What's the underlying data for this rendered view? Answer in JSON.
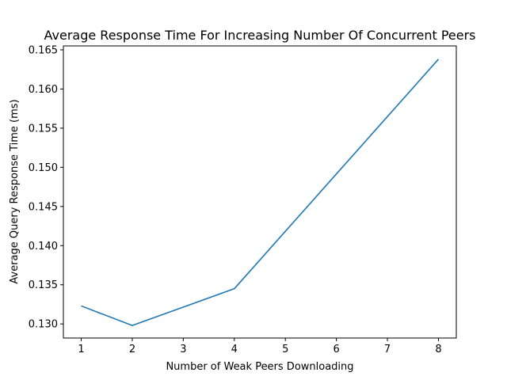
{
  "chart_data": {
    "type": "line",
    "title": "Average Response Time For Increasing Number Of Concurrent Peers",
    "xlabel": "Number of Weak Peers Downloading",
    "ylabel": "Average Query Response Time (ms)",
    "x_ticks": [
      "1",
      "2",
      "3",
      "4",
      "5",
      "6",
      "7",
      "8"
    ],
    "y_ticks": [
      "0.130",
      "0.135",
      "0.140",
      "0.145",
      "0.150",
      "0.155",
      "0.160",
      "0.165"
    ],
    "xlim": [
      0.65,
      8.35
    ],
    "ylim": [
      0.1282,
      0.1655
    ],
    "grid": false,
    "series": [
      {
        "x": [
          1,
          2,
          4,
          8
        ],
        "values": [
          0.1323,
          0.1298,
          0.1345,
          0.1638
        ],
        "color": "#1f77b4"
      }
    ]
  }
}
